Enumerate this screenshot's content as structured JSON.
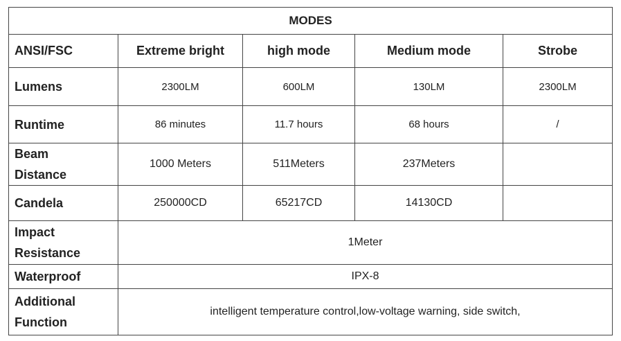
{
  "table": {
    "title": "MODES",
    "header": [
      "ANSI/FSC",
      "Extreme bright",
      "high mode",
      "Medium mode",
      "Strobe"
    ],
    "rows": [
      [
        "Lumens",
        "2300LM",
        "600LM",
        "130LM",
        "2300LM"
      ],
      [
        "Runtime",
        "86 minutes",
        "11.7 hours",
        "68 hours",
        "/"
      ],
      [
        "Beam Distance",
        "1000 Meters",
        "511Meters",
        "237Meters"
      ],
      [
        "Candela",
        "250000CD",
        "65217CD",
        "14130CD"
      ],
      [
        "Impact Resistance",
        "1Meter"
      ],
      [
        "Waterproof",
        "IPX-8"
      ],
      [
        "Additional Function",
        "intelligent temperature control,low-voltage warning, side switch,"
      ]
    ]
  }
}
